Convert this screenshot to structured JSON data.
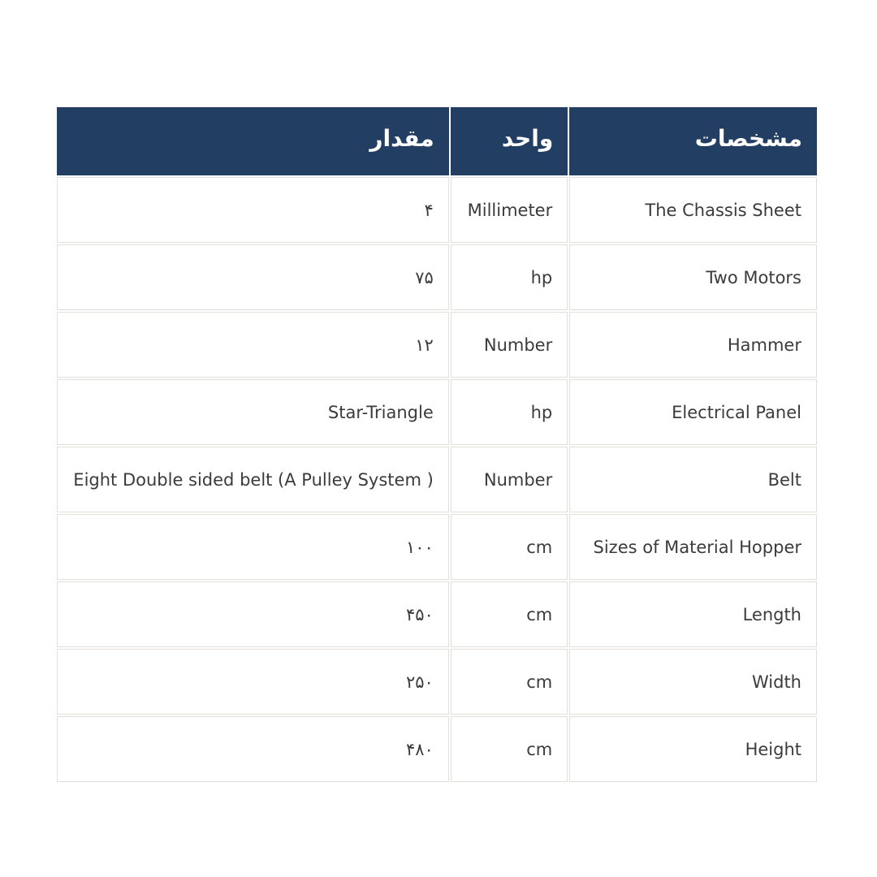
{
  "page": {
    "background_color": "#ffffff"
  },
  "table": {
    "colors": {
      "header_bg": "#233e63",
      "header_fg": "#ffffff",
      "border_color": "#e2e0d9",
      "body_fg": "#3b3b3b"
    },
    "headers": {
      "value": "مقدار",
      "unit": "واحد",
      "spec": "مشخصات"
    },
    "rows": [
      {
        "spec": "The Chassis Sheet",
        "unit": "Millimeter",
        "value": "۴"
      },
      {
        "spec": "Two Motors",
        "unit": "hp",
        "value": "۷۵"
      },
      {
        "spec": "Hammer",
        "unit": "Number",
        "value": "۱۲"
      },
      {
        "spec": "Electrical Panel",
        "unit": "hp",
        "value": "Star-Triangle"
      },
      {
        "spec": "Belt",
        "unit": "Number",
        "value": "Eight Double sided belt (A Pulley System )"
      },
      {
        "spec": "Sizes of Material Hopper",
        "unit": "cm",
        "value": "۱۰۰"
      },
      {
        "spec": "Length",
        "unit": "cm",
        "value": "۴۵۰"
      },
      {
        "spec": "Width",
        "unit": "cm",
        "value": "۲۵۰"
      },
      {
        "spec": "Height",
        "unit": "cm",
        "value": "۴۸۰"
      }
    ]
  }
}
